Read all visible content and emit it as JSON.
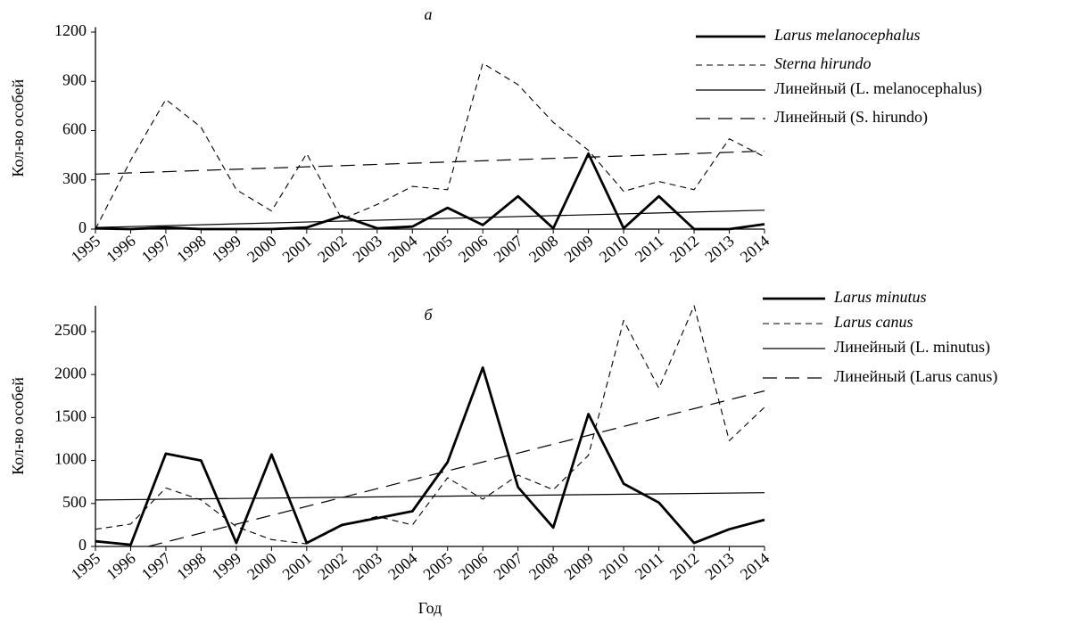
{
  "chart_data": [
    {
      "type": "line",
      "title": "а",
      "y_label": "Кол-во особей",
      "legend_position": "right",
      "x": [
        1995,
        1996,
        1997,
        1998,
        1999,
        2000,
        2001,
        2002,
        2003,
        2004,
        2005,
        2006,
        2007,
        2008,
        2009,
        2010,
        2011,
        2012,
        2013,
        2014
      ],
      "xlim": [
        1995,
        2014
      ],
      "xticks": [
        1995,
        1996,
        1997,
        1998,
        1999,
        2000,
        2001,
        2002,
        2003,
        2004,
        2005,
        2006,
        2007,
        2008,
        2009,
        2010,
        2011,
        2012,
        2013,
        2014
      ],
      "ylim": [
        0,
        1230
      ],
      "yticks": [
        0,
        300,
        600,
        900,
        1200
      ],
      "series": [
        {
          "name": "Larus melanocephalus",
          "color": "#000000",
          "line_style": "thick",
          "values": [
            5,
            0,
            10,
            0,
            0,
            0,
            10,
            80,
            5,
            15,
            130,
            25,
            200,
            5,
            460,
            5,
            200,
            0,
            0,
            30
          ]
        },
        {
          "name": "Sterna hirundo",
          "color": "#000000",
          "line_style": "dashed",
          "values": [
            0,
            420,
            790,
            620,
            240,
            110,
            460,
            60,
            150,
            260,
            240,
            1010,
            880,
            650,
            480,
            230,
            290,
            240,
            550,
            440
          ]
        },
        {
          "name": "Линейный (L. melanocephalus)",
          "color": "#000000",
          "line_style": "thin",
          "x": [
            1995,
            2014
          ],
          "values": [
            10,
            115
          ]
        },
        {
          "name": "Линейный (S. hirundo)",
          "color": "#000000",
          "line_style": "long-dash",
          "x": [
            1995,
            2014
          ],
          "values": [
            335,
            475
          ]
        }
      ]
    },
    {
      "type": "line",
      "title": "б",
      "y_label": "Кол-во особей",
      "x_label": "Год",
      "legend_position": "right",
      "x": [
        1995,
        1996,
        1997,
        1998,
        1999,
        2000,
        2001,
        2002,
        2003,
        2004,
        2005,
        2006,
        2007,
        2008,
        2009,
        2010,
        2011,
        2012,
        2013,
        2014
      ],
      "xlim": [
        1995,
        2014
      ],
      "xticks": [
        1995,
        1996,
        1997,
        1998,
        1999,
        2000,
        2001,
        2002,
        2003,
        2004,
        2005,
        2006,
        2007,
        2008,
        2009,
        2010,
        2011,
        2012,
        2013,
        2014
      ],
      "ylim": [
        0,
        2800
      ],
      "yticks": [
        0,
        500,
        1000,
        1500,
        2000,
        2500
      ],
      "series": [
        {
          "name": "Larus minutus",
          "color": "#000000",
          "line_style": "thick",
          "values": [
            60,
            20,
            1080,
            1000,
            40,
            1070,
            40,
            250,
            330,
            410,
            980,
            2080,
            690,
            220,
            1540,
            730,
            510,
            40,
            200,
            310
          ]
        },
        {
          "name": "Larus canus",
          "color": "#000000",
          "line_style": "dashed",
          "values": [
            200,
            260,
            680,
            540,
            230,
            80,
            30,
            240,
            350,
            250,
            800,
            550,
            830,
            660,
            1060,
            2630,
            1840,
            2800,
            1230,
            1620
          ]
        },
        {
          "name": "Линейный (L. minutus)",
          "color": "#000000",
          "line_style": "thin",
          "x": [
            1995,
            2014
          ],
          "values": [
            540,
            625
          ]
        },
        {
          "name": "Линейный (Larus canus)",
          "color": "#000000",
          "line_style": "long-dash",
          "x": [
            1996.5,
            2014
          ],
          "values": [
            0,
            1810
          ]
        }
      ]
    }
  ]
}
